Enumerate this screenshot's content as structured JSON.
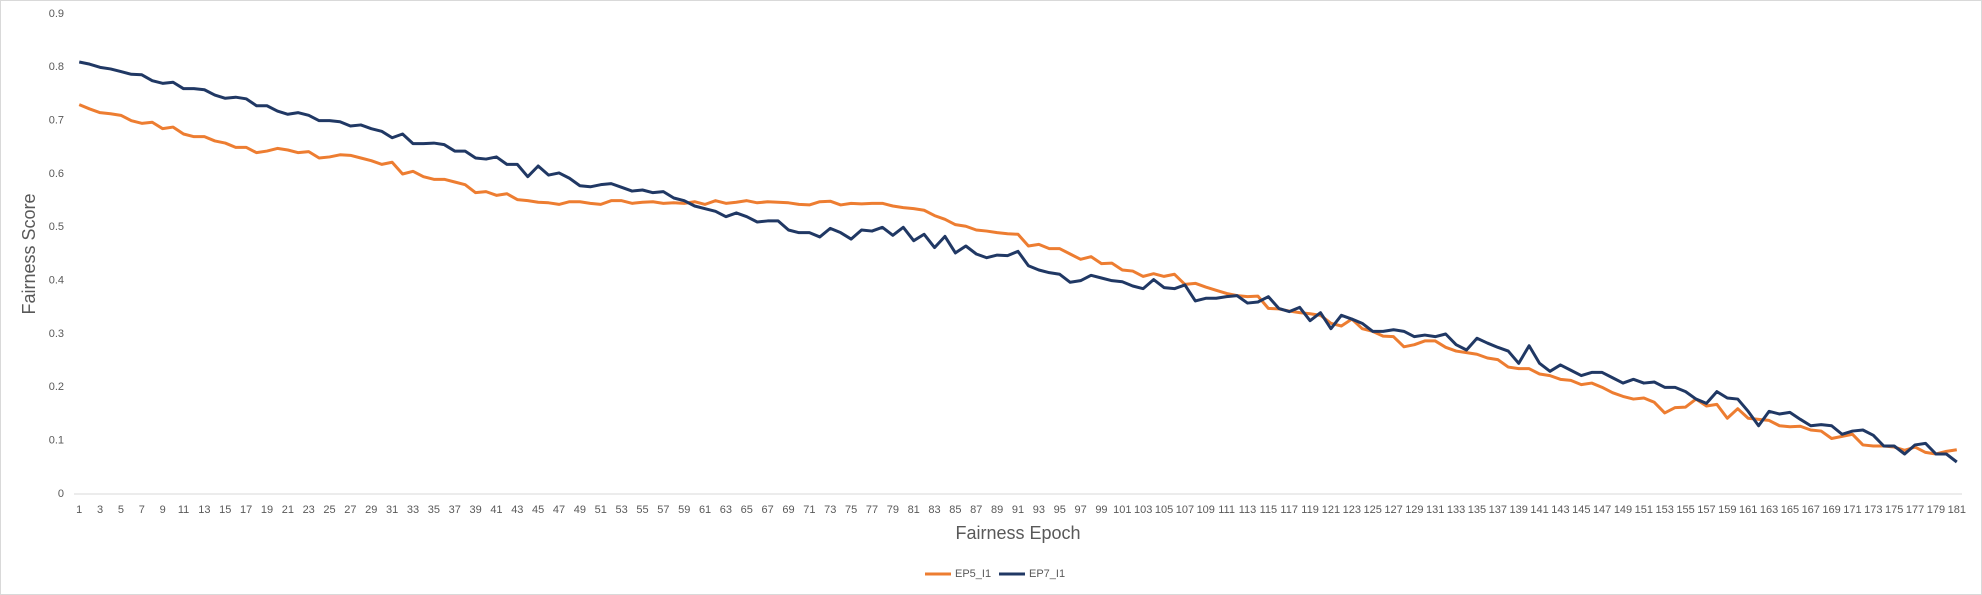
{
  "chart_data": {
    "type": "line",
    "x_label": "Fairness Epoch",
    "y_label": "Fairness Score",
    "categories": [
      1,
      null,
      3,
      null,
      5,
      null,
      7,
      null,
      9,
      null,
      11,
      null,
      13,
      null,
      15,
      null,
      17,
      null,
      19,
      null,
      21,
      null,
      23,
      null,
      25,
      null,
      27,
      null,
      29,
      null,
      31,
      null,
      33,
      null,
      35,
      null,
      37,
      null,
      39,
      null,
      41,
      null,
      43,
      null,
      45,
      null,
      47,
      null,
      49,
      null,
      51,
      null,
      53,
      null,
      55,
      null,
      57,
      null,
      59,
      null,
      61,
      null,
      63,
      null,
      65,
      null,
      67,
      null,
      69,
      null,
      71,
      null,
      73,
      null,
      75,
      null,
      77,
      null,
      79,
      null,
      81,
      null,
      83,
      null,
      85,
      null,
      87,
      null,
      89,
      null,
      91,
      null,
      93,
      null,
      95,
      null,
      97,
      null,
      99,
      null,
      101,
      null,
      103,
      null,
      105,
      null,
      107,
      null,
      109,
      null,
      111,
      null,
      113,
      null,
      115,
      null,
      117,
      null,
      119,
      null,
      121,
      null,
      123,
      null,
      125,
      null,
      127,
      null,
      129,
      null,
      131,
      null,
      133,
      null,
      135,
      null,
      137,
      null,
      139,
      null,
      141,
      null,
      143,
      null,
      145,
      null,
      147,
      null,
      149,
      null,
      151,
      null,
      153,
      null,
      155,
      null,
      157,
      null,
      159,
      null,
      161,
      null,
      163,
      null,
      165,
      null,
      167,
      null,
      169,
      null,
      171,
      null,
      173,
      null,
      175,
      null,
      177,
      null,
      179,
      null,
      181
    ],
    "series": [
      {
        "name": "EP5_I1",
        "color": "#ed7d31",
        "values": [
          0.73,
          0.722,
          0.715,
          0.713,
          0.71,
          0.7,
          0.695,
          0.697,
          0.685,
          0.688,
          0.675,
          0.67,
          0.67,
          0.662,
          0.658,
          0.65,
          0.65,
          0.64,
          0.643,
          0.648,
          0.645,
          0.64,
          0.642,
          0.63,
          0.632,
          0.636,
          0.635,
          0.63,
          0.625,
          0.618,
          0.622,
          0.6,
          0.605,
          0.595,
          0.59,
          0.59,
          0.585,
          0.58,
          0.565,
          0.567,
          0.56,
          0.563,
          0.552,
          0.55,
          0.547,
          0.546,
          0.543,
          0.548,
          0.548,
          0.545,
          0.543,
          0.55,
          0.55,
          0.545,
          0.547,
          0.548,
          0.545,
          0.546,
          0.545,
          0.548,
          0.543,
          0.55,
          0.545,
          0.547,
          0.55,
          0.546,
          0.548,
          0.547,
          0.546,
          0.543,
          0.542,
          0.548,
          0.549,
          0.542,
          0.545,
          0.544,
          0.545,
          0.545,
          0.54,
          0.537,
          0.535,
          0.532,
          0.522,
          0.515,
          0.505,
          0.502,
          0.495,
          0.493,
          0.49,
          0.488,
          0.487,
          0.465,
          0.468,
          0.46,
          0.46,
          0.45,
          0.44,
          0.445,
          0.432,
          0.433,
          0.42,
          0.418,
          0.408,
          0.413,
          0.408,
          0.412,
          0.393,
          0.395,
          0.388,
          0.382,
          0.376,
          0.372,
          0.37,
          0.371,
          0.348,
          0.347,
          0.343,
          0.34,
          0.338,
          0.335,
          0.32,
          0.315,
          0.328,
          0.31,
          0.305,
          0.296,
          0.295,
          0.276,
          0.28,
          0.287,
          0.287,
          0.275,
          0.268,
          0.265,
          0.262,
          0.255,
          0.252,
          0.238,
          0.235,
          0.235,
          0.225,
          0.222,
          0.215,
          0.213,
          0.205,
          0.208,
          0.2,
          0.19,
          0.183,
          0.178,
          0.18,
          0.172,
          0.152,
          0.162,
          0.163,
          0.178,
          0.165,
          0.168,
          0.142,
          0.16,
          0.142,
          0.14,
          0.138,
          0.128,
          0.126,
          0.127,
          0.12,
          0.118,
          0.104,
          0.108,
          0.112,
          0.092,
          0.09,
          0.09,
          0.088,
          0.082,
          0.088,
          0.078,
          0.075,
          0.08,
          0.083
        ]
      },
      {
        "name": "EP7_I1",
        "color": "#203864",
        "values": [
          0.81,
          0.806,
          0.8,
          0.797,
          0.792,
          0.787,
          0.786,
          0.775,
          0.77,
          0.772,
          0.76,
          0.76,
          0.758,
          0.748,
          0.742,
          0.744,
          0.741,
          0.728,
          0.728,
          0.718,
          0.712,
          0.715,
          0.71,
          0.7,
          0.7,
          0.698,
          0.69,
          0.692,
          0.685,
          0.68,
          0.668,
          0.675,
          0.657,
          0.657,
          0.658,
          0.655,
          0.643,
          0.643,
          0.63,
          0.628,
          0.632,
          0.618,
          0.618,
          0.595,
          0.615,
          0.598,
          0.602,
          0.592,
          0.578,
          0.576,
          0.58,
          0.582,
          0.575,
          0.568,
          0.57,
          0.565,
          0.567,
          0.555,
          0.55,
          0.54,
          0.535,
          0.53,
          0.52,
          0.527,
          0.52,
          0.51,
          0.512,
          0.512,
          0.495,
          0.49,
          0.49,
          0.482,
          0.498,
          0.49,
          0.478,
          0.495,
          0.493,
          0.5,
          0.485,
          0.5,
          0.475,
          0.487,
          0.462,
          0.483,
          0.452,
          0.465,
          0.45,
          0.443,
          0.448,
          0.447,
          0.455,
          0.428,
          0.42,
          0.415,
          0.412,
          0.397,
          0.4,
          0.41,
          0.405,
          0.4,
          0.398,
          0.39,
          0.385,
          0.402,
          0.387,
          0.385,
          0.392,
          0.362,
          0.367,
          0.367,
          0.37,
          0.372,
          0.358,
          0.36,
          0.37,
          0.348,
          0.342,
          0.35,
          0.325,
          0.34,
          0.31,
          0.335,
          0.328,
          0.32,
          0.305,
          0.305,
          0.308,
          0.305,
          0.295,
          0.298,
          0.295,
          0.3,
          0.28,
          0.27,
          0.292,
          0.283,
          0.275,
          0.268,
          0.245,
          0.278,
          0.245,
          0.23,
          0.242,
          0.232,
          0.222,
          0.228,
          0.228,
          0.218,
          0.208,
          0.215,
          0.208,
          0.21,
          0.2,
          0.2,
          0.192,
          0.178,
          0.17,
          0.192,
          0.18,
          0.178,
          0.155,
          0.128,
          0.155,
          0.15,
          0.153,
          0.14,
          0.128,
          0.13,
          0.128,
          0.112,
          0.118,
          0.12,
          0.11,
          0.09,
          0.09,
          0.075,
          0.092,
          0.095,
          0.075,
          0.075,
          0.06
        ]
      }
    ],
    "ylim": [
      0,
      0.9
    ],
    "yticks": [
      0,
      0.1,
      0.2,
      0.3,
      0.4,
      0.5,
      0.6,
      0.7,
      0.8,
      0.9
    ],
    "grid": false,
    "legend": "bottom"
  }
}
